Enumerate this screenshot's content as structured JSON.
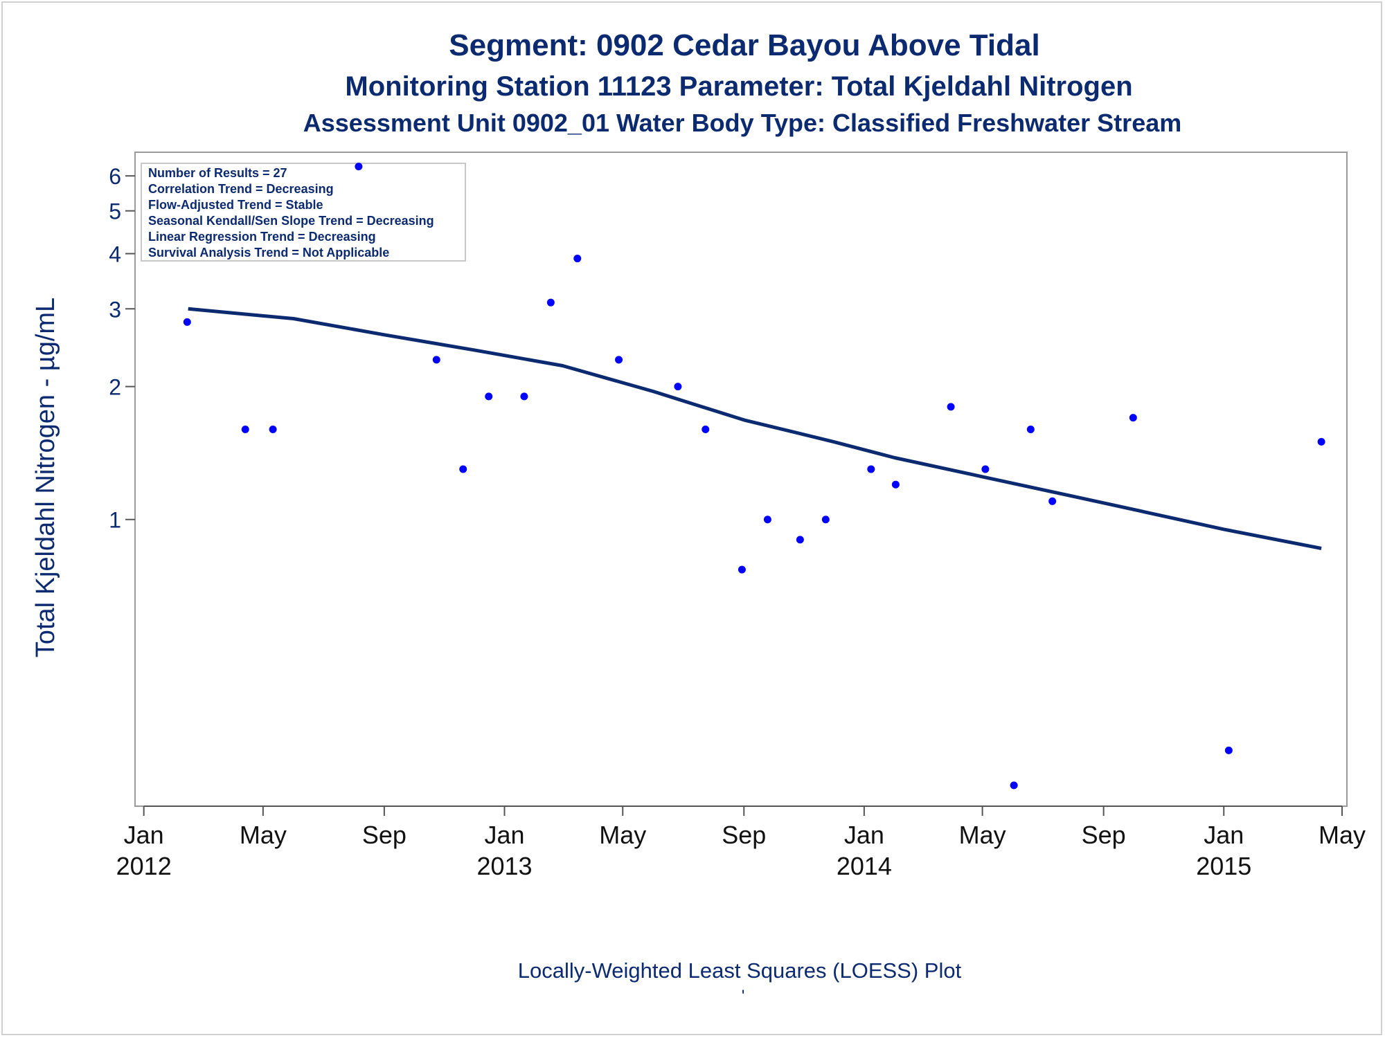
{
  "chart_data": {
    "type": "scatter",
    "title": "Segment: 0902  Cedar Bayou Above Tidal",
    "subtitle": "Monitoring Station 11123 Parameter: Total Kjeldahl Nitrogen",
    "subtitle2": "Assessment Unit 0902_01   Water Body Type: Classified Freshwater Stream",
    "ylabel": "Total Kjeldahl Nitrogen -  µg/mL",
    "footer": "Locally-Weighted Least Squares (LOESS) Plot",
    "footer_mark": "'",
    "y_scale": "log",
    "ylim": [
      0.23,
      6.5
    ],
    "xlim": [
      "2011-12-28",
      "2015-05-01"
    ],
    "y_ticks": [
      {
        "value": 1,
        "label": "1"
      },
      {
        "value": 2,
        "label": "2"
      },
      {
        "value": 3,
        "label": "3"
      },
      {
        "value": 4,
        "label": "4"
      },
      {
        "value": 5,
        "label": "5"
      },
      {
        "value": 6,
        "label": "6"
      }
    ],
    "x_ticks": [
      {
        "date": "2012-01-01",
        "label": "Jan",
        "year": "2012"
      },
      {
        "date": "2012-05-01",
        "label": "May",
        "year": ""
      },
      {
        "date": "2012-09-01",
        "label": "Sep",
        "year": ""
      },
      {
        "date": "2013-01-01",
        "label": "Jan",
        "year": "2013"
      },
      {
        "date": "2013-05-01",
        "label": "May",
        "year": ""
      },
      {
        "date": "2013-09-01",
        "label": "Sep",
        "year": ""
      },
      {
        "date": "2014-01-01",
        "label": "Jan",
        "year": "2014"
      },
      {
        "date": "2014-05-01",
        "label": "May",
        "year": ""
      },
      {
        "date": "2014-09-01",
        "label": "Sep",
        "year": ""
      },
      {
        "date": "2015-01-01",
        "label": "Jan",
        "year": "2015"
      },
      {
        "date": "2015-05-01",
        "label": "May",
        "year": ""
      }
    ],
    "stats": [
      "Number of Results = 27",
      "Correlation Trend = Decreasing",
      "Flow-Adjusted Trend = Stable",
      "Seasonal Kendall/Sen Slope Trend = Decreasing",
      "Linear Regression Trend = Decreasing",
      "Survival Analysis Trend = Not Applicable"
    ],
    "series": [
      {
        "type": "scatter",
        "color": "#0000ff",
        "points": [
          {
            "date": "2012-02-14",
            "y": 2.8
          },
          {
            "date": "2012-04-13",
            "y": 1.6
          },
          {
            "date": "2012-05-11",
            "y": 1.6
          },
          {
            "date": "2012-08-06",
            "y": 6.3
          },
          {
            "date": "2012-10-24",
            "y": 2.3
          },
          {
            "date": "2012-11-20",
            "y": 1.3
          },
          {
            "date": "2012-12-16",
            "y": 1.9
          },
          {
            "date": "2013-01-21",
            "y": 1.9
          },
          {
            "date": "2013-02-17",
            "y": 3.1
          },
          {
            "date": "2013-03-16",
            "y": 3.9
          },
          {
            "date": "2013-04-27",
            "y": 2.3
          },
          {
            "date": "2013-06-26",
            "y": 2.0
          },
          {
            "date": "2013-07-24",
            "y": 1.6
          },
          {
            "date": "2013-08-30",
            "y": 0.77
          },
          {
            "date": "2013-09-25",
            "y": 1.0
          },
          {
            "date": "2013-10-28",
            "y": 0.9
          },
          {
            "date": "2013-11-23",
            "y": 1.0
          },
          {
            "date": "2014-01-08",
            "y": 1.3
          },
          {
            "date": "2014-02-02",
            "y": 1.2
          },
          {
            "date": "2014-03-30",
            "y": 1.8
          },
          {
            "date": "2014-05-04",
            "y": 1.3
          },
          {
            "date": "2014-06-02",
            "y": 0.25
          },
          {
            "date": "2014-06-19",
            "y": 1.6
          },
          {
            "date": "2014-07-11",
            "y": 1.1
          },
          {
            "date": "2014-10-01",
            "y": 1.7
          },
          {
            "date": "2015-01-06",
            "y": 0.3
          },
          {
            "date": "2015-04-10",
            "y": 1.5
          }
        ]
      },
      {
        "type": "line",
        "color": "#0b2a6f",
        "points": [
          {
            "date": "2012-02-15",
            "y": 3.0
          },
          {
            "date": "2012-06-01",
            "y": 2.85
          },
          {
            "date": "2012-09-01",
            "y": 2.62
          },
          {
            "date": "2012-12-01",
            "y": 2.42
          },
          {
            "date": "2013-03-01",
            "y": 2.23
          },
          {
            "date": "2013-06-01",
            "y": 1.95
          },
          {
            "date": "2013-09-01",
            "y": 1.68
          },
          {
            "date": "2013-12-01",
            "y": 1.5
          },
          {
            "date": "2014-02-01",
            "y": 1.38
          },
          {
            "date": "2014-05-01",
            "y": 1.25
          },
          {
            "date": "2014-09-01",
            "y": 1.09
          },
          {
            "date": "2015-01-01",
            "y": 0.95
          },
          {
            "date": "2015-04-10",
            "y": 0.86
          }
        ]
      }
    ]
  }
}
